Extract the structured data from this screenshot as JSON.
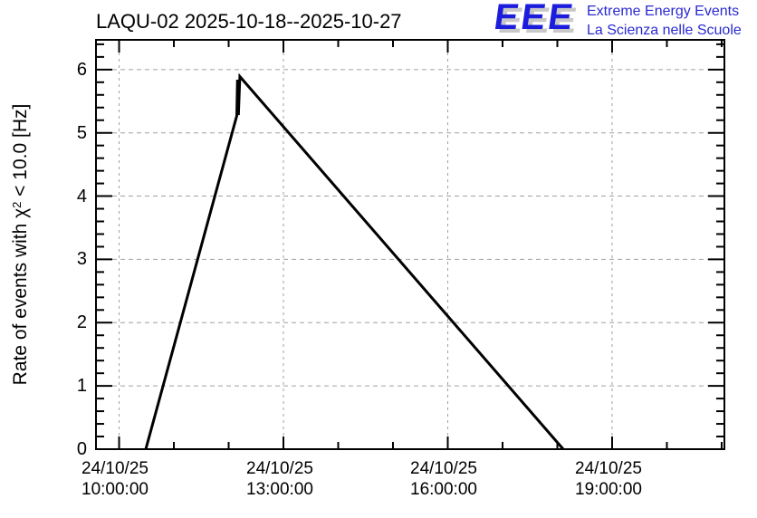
{
  "header": {
    "title": "LAQU-02 2025-10-18--2025-10-27"
  },
  "logo": {
    "acronym": "EEE",
    "tagline_line1": "Extreme Energy Events",
    "tagline_line2": "La Scienza nelle Scuole",
    "acronym_color": "#1c1cdd",
    "tagline_color": "#2a2ad2",
    "shadow_color": "#c8c8c8"
  },
  "y_axis": {
    "label_prefix": "Rate of events with χ",
    "label_sup": "2",
    "label_suffix": " < 10.0 [Hz]",
    "tick_labels": [
      "0",
      "1",
      "2",
      "3",
      "4",
      "5",
      "6"
    ]
  },
  "x_axis": {
    "tick_labels": [
      {
        "date": "24/10/25",
        "time": "10:00:00"
      },
      {
        "date": "24/10/25",
        "time": "13:00:00"
      },
      {
        "date": "24/10/25",
        "time": "16:00:00"
      },
      {
        "date": "24/10/25",
        "time": "19:00:00"
      }
    ]
  },
  "chart_data": {
    "type": "line",
    "title": "LAQU-02 2025-10-18--2025-10-27",
    "station": "LAQU-02",
    "date_range": "2025-10-18--2025-10-27",
    "ylabel": "Rate of events with χ² < 10.0 [Hz]",
    "xlabel": "",
    "x_tick_hours": [
      10,
      13,
      16,
      19
    ],
    "x_minor_tick_hours": [
      11,
      12,
      14,
      15,
      17,
      18,
      20,
      21
    ],
    "xlim_hours": [
      9.578,
      21.05
    ],
    "ylim": [
      0,
      6.47
    ],
    "y_major_ticks": [
      0,
      1,
      2,
      3,
      4,
      5,
      6
    ],
    "y_minor_step": 0.2,
    "grid": true,
    "legend_position": "none",
    "line_color": "#000000",
    "grid_color": "#a0a0a0",
    "frame_color": "#000000",
    "points": [
      {
        "time": "24/10/25 10:29:13",
        "hours": 10.487,
        "rate_hz": 0.0
      },
      {
        "time": "24/10/25 12:08:56",
        "hours": 12.149,
        "rate_hz": 5.27
      },
      {
        "time": "24/10/25 12:09:43",
        "hours": 12.162,
        "rate_hz": 5.84
      },
      {
        "time": "24/10/25 12:10:41",
        "hours": 12.178,
        "rate_hz": 5.28
      },
      {
        "time": "24/10/25 12:12:18",
        "hours": 12.205,
        "rate_hz": 5.89
      },
      {
        "time": "24/10/25 18:06:25",
        "hours": 18.107,
        "rate_hz": 0.0
      }
    ]
  }
}
